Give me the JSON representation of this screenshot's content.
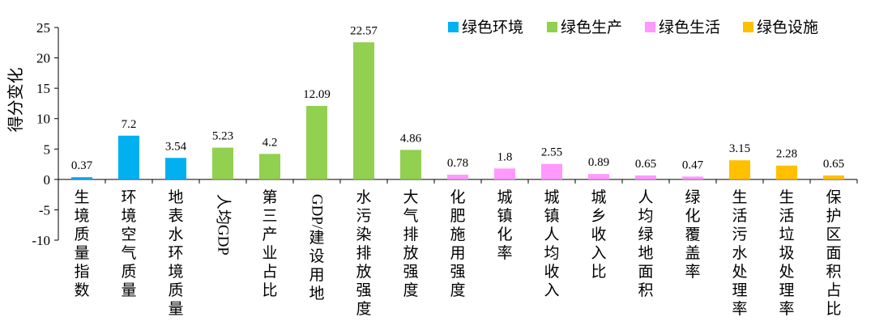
{
  "chart_data": {
    "type": "bar",
    "ylabel": "得分变化",
    "ylim": [
      -10,
      25
    ],
    "yticks": [
      -10,
      -5,
      0,
      5,
      10,
      15,
      20,
      25
    ],
    "legend_position": "top-right",
    "series": [
      {
        "name": "绿色环境",
        "color": "#00B0F0"
      },
      {
        "name": "绿色生产",
        "color": "#92D050"
      },
      {
        "name": "绿色生活",
        "color": "#FF99FF"
      },
      {
        "name": "绿色设施",
        "color": "#FFC000"
      }
    ],
    "categories": [
      {
        "label": "生境质量指数",
        "value": 0.37,
        "value_label": "0.37",
        "group": 0
      },
      {
        "label": "环境空气质量",
        "value": 7.2,
        "value_label": "7.2",
        "group": 0
      },
      {
        "label": "地表水环境质量",
        "value": 3.54,
        "value_label": "3.54",
        "group": 0
      },
      {
        "label": "人均GDP",
        "value": 5.23,
        "value_label": "5.23",
        "group": 1
      },
      {
        "label": "第三产业占比",
        "value": 4.2,
        "value_label": "4.2",
        "group": 1
      },
      {
        "label": "GDP/建设用地",
        "value": 12.09,
        "value_label": "12.09",
        "group": 1
      },
      {
        "label": "水污染排放强度",
        "value": 22.57,
        "value_label": "22.57",
        "group": 1
      },
      {
        "label": "大气排放强度",
        "value": 4.86,
        "value_label": "4.86",
        "group": 1
      },
      {
        "label": "化肥施用强度",
        "value": 0.78,
        "value_label": "0.78",
        "group": 2
      },
      {
        "label": "城镇化率",
        "value": 1.8,
        "value_label": "1.8",
        "group": 2
      },
      {
        "label": "城镇人均收入",
        "value": 2.55,
        "value_label": "2.55",
        "group": 2
      },
      {
        "label": "城乡收入比",
        "value": 0.89,
        "value_label": "0.89",
        "group": 2
      },
      {
        "label": "人均绿地面积",
        "value": 0.65,
        "value_label": "0.65",
        "group": 2
      },
      {
        "label": "绿化覆盖率",
        "value": 0.47,
        "value_label": "0.47",
        "group": 2
      },
      {
        "label": "生活污水处理率",
        "value": 3.15,
        "value_label": "3.15",
        "group": 3
      },
      {
        "label": "生活垃圾处理率",
        "value": 2.28,
        "value_label": "2.28",
        "group": 3
      },
      {
        "label": "保护区面积占比",
        "value": 0.65,
        "value_label": "0.65",
        "group": 3
      }
    ]
  }
}
